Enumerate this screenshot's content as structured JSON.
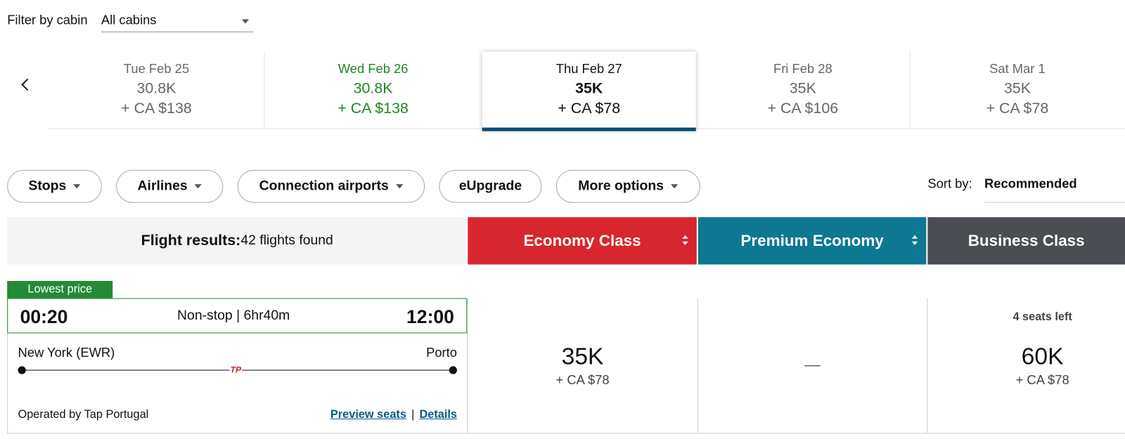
{
  "filter": {
    "label": "Filter by cabin",
    "value": "All cabins"
  },
  "dates": [
    {
      "day": "Tue Feb 25",
      "points": "30.8K",
      "cash": "+ CA $138"
    },
    {
      "day": "Wed Feb 26",
      "points": "30.8K",
      "cash": "+ CA $138"
    },
    {
      "day": "Thu Feb 27",
      "points": "35K",
      "cash": "+ CA $78"
    },
    {
      "day": "Fri Feb 28",
      "points": "35K",
      "cash": "+ CA $106"
    },
    {
      "day": "Sat Mar 1",
      "points": "35K",
      "cash": "+ CA $78"
    }
  ],
  "filters": [
    "Stops",
    "Airlines",
    "Connection airports",
    "eUpgrade",
    "More options"
  ],
  "sort": {
    "label": "Sort by:",
    "value": "Recommended"
  },
  "results": {
    "title": "Flight results:",
    "count": "42 flights found"
  },
  "cabins": [
    "Economy Class",
    "Premium Economy",
    "Business Class"
  ],
  "flight": {
    "badge": "Lowest price",
    "depart": "00:20",
    "info": "Non-stop | 6hr40m",
    "arrive": "12:00",
    "origin": "New York (EWR)",
    "destination": "Porto",
    "logo": "TP",
    "operator": "Operated by Tap Portugal",
    "links": [
      "Preview seats",
      "Details"
    ],
    "separator": "|",
    "fares": [
      {
        "points": "35K",
        "cash": "+ CA $78"
      },
      {
        "points": "—"
      },
      {
        "note": "4 seats left",
        "points": "60K",
        "cash": "+ CA $78"
      }
    ]
  }
}
